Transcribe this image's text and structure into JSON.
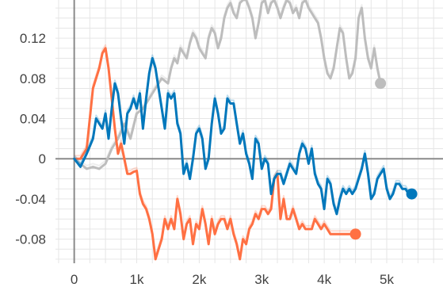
{
  "chart_data": {
    "type": "line",
    "title": "",
    "xlabel": "",
    "ylabel": "",
    "xlim": [
      -300,
      5900
    ],
    "ylim": [
      -0.104,
      0.158
    ],
    "x_ticks": [
      0,
      1000,
      2000,
      3000,
      4000,
      5000
    ],
    "x_tick_labels": [
      "0",
      "1k",
      "2k",
      "3k",
      "4k",
      "5k"
    ],
    "y_ticks": [
      0.12,
      0.08,
      0.04,
      0,
      -0.04,
      -0.08
    ],
    "y_tick_labels": [
      "0.12",
      "0.08",
      "0.04",
      "0",
      "-0.04",
      "-0.08"
    ],
    "grid": true,
    "legend": "none",
    "series": [
      {
        "color": "#bdbdbd",
        "x": [
          0,
          100,
          200,
          300,
          400,
          500,
          600,
          700,
          800,
          900,
          1000,
          1100,
          1200,
          1300,
          1400,
          1500,
          1550,
          1600,
          1650,
          1700,
          1750,
          1800,
          1850,
          1900,
          1950,
          2000,
          2050,
          2100,
          2150,
          2200,
          2250,
          2300,
          2350,
          2400,
          2450,
          2500,
          2550,
          2600,
          2650,
          2700,
          2750,
          2800,
          2850,
          2900,
          2950,
          3000,
          3050,
          3100,
          3150,
          3200,
          3250,
          3300,
          3350,
          3400,
          3450,
          3500,
          3550,
          3600,
          3650,
          3700,
          3750,
          3800,
          3850,
          3900,
          3950,
          4000,
          4050,
          4100,
          4150,
          4200,
          4250,
          4300,
          4350,
          4400,
          4450,
          4500,
          4550,
          4600,
          4650,
          4700,
          4750,
          4800,
          4850,
          4900
        ],
        "y": [
          0,
          -0.005,
          -0.01,
          -0.008,
          -0.01,
          -0.005,
          0.01,
          0.02,
          0.035,
          0.02,
          0.045,
          0.05,
          0.06,
          0.07,
          0.08,
          0.075,
          0.09,
          0.1,
          0.095,
          0.11,
          0.105,
          0.1,
          0.115,
          0.125,
          0.12,
          0.11,
          0.105,
          0.1,
          0.12,
          0.13,
          0.125,
          0.11,
          0.12,
          0.14,
          0.15,
          0.155,
          0.145,
          0.14,
          0.155,
          0.158,
          0.158,
          0.15,
          0.14,
          0.12,
          0.135,
          0.155,
          0.158,
          0.145,
          0.155,
          0.158,
          0.15,
          0.14,
          0.15,
          0.158,
          0.155,
          0.145,
          0.15,
          0.14,
          0.155,
          0.158,
          0.15,
          0.145,
          0.14,
          0.135,
          0.12,
          0.1,
          0.085,
          0.08,
          0.09,
          0.11,
          0.13,
          0.125,
          0.1,
          0.08,
          0.085,
          0.1,
          0.14,
          0.15,
          0.12,
          0.1,
          0.09,
          0.11,
          0.09,
          0.075
        ]
      },
      {
        "color": "#ff7043",
        "x": [
          0,
          100,
          200,
          300,
          400,
          450,
          500,
          550,
          600,
          650,
          700,
          750,
          800,
          850,
          900,
          950,
          1000,
          1050,
          1100,
          1150,
          1200,
          1250,
          1300,
          1350,
          1400,
          1450,
          1500,
          1550,
          1600,
          1650,
          1700,
          1750,
          1800,
          1850,
          1900,
          1950,
          2000,
          2050,
          2100,
          2150,
          2200,
          2250,
          2300,
          2350,
          2400,
          2450,
          2500,
          2550,
          2600,
          2650,
          2700,
          2750,
          2800,
          2850,
          2900,
          2950,
          3000,
          3050,
          3100,
          3150,
          3200,
          3250,
          3300,
          3350,
          3400,
          3450,
          3500,
          3550,
          3600,
          3650,
          3700,
          3750,
          3800,
          3850,
          3900,
          3950,
          4000,
          4050,
          4100,
          4150,
          4200,
          4250,
          4300,
          4350,
          4400,
          4450,
          4500
        ],
        "y": [
          0,
          0,
          0.01,
          0.07,
          0.09,
          0.105,
          0.11,
          0.09,
          0.06,
          0.03,
          0.005,
          0.015,
          0.0,
          -0.015,
          -0.015,
          -0.013,
          -0.012,
          -0.035,
          -0.045,
          -0.05,
          -0.06,
          -0.075,
          -0.1,
          -0.09,
          -0.08,
          -0.06,
          -0.07,
          -0.06,
          -0.07,
          -0.04,
          -0.055,
          -0.08,
          -0.065,
          -0.06,
          -0.085,
          -0.065,
          -0.07,
          -0.05,
          -0.065,
          -0.085,
          -0.06,
          -0.075,
          -0.065,
          -0.06,
          -0.06,
          -0.07,
          -0.06,
          -0.075,
          -0.085,
          -0.1,
          -0.08,
          -0.085,
          -0.07,
          -0.065,
          -0.055,
          -0.06,
          -0.05,
          -0.05,
          -0.055,
          -0.05,
          -0.02,
          -0.015,
          -0.06,
          -0.04,
          -0.06,
          -0.06,
          -0.05,
          -0.06,
          -0.07,
          -0.065,
          -0.07,
          -0.07,
          -0.07,
          -0.06,
          -0.065,
          -0.07,
          -0.065,
          -0.07,
          -0.075,
          -0.075,
          -0.075,
          -0.075,
          -0.075,
          -0.075,
          -0.075,
          -0.075,
          -0.075
        ]
      },
      {
        "color": "#0077bb",
        "x": [
          0,
          100,
          200,
          300,
          350,
          400,
          450,
          500,
          550,
          600,
          650,
          700,
          750,
          800,
          850,
          900,
          950,
          1000,
          1050,
          1100,
          1150,
          1200,
          1250,
          1300,
          1350,
          1400,
          1450,
          1500,
          1550,
          1600,
          1650,
          1700,
          1750,
          1800,
          1850,
          1900,
          1950,
          2000,
          2050,
          2100,
          2150,
          2200,
          2250,
          2300,
          2350,
          2400,
          2450,
          2500,
          2550,
          2600,
          2650,
          2700,
          2750,
          2800,
          2850,
          2900,
          2950,
          3000,
          3050,
          3100,
          3150,
          3200,
          3250,
          3300,
          3350,
          3400,
          3450,
          3500,
          3550,
          3600,
          3650,
          3700,
          3750,
          3800,
          3850,
          3900,
          3950,
          4000,
          4050,
          4100,
          4150,
          4200,
          4250,
          4300,
          4350,
          4400,
          4450,
          4500,
          4550,
          4600,
          4650,
          4700,
          4750,
          4800,
          4850,
          4900,
          4950,
          5000,
          5050,
          5100,
          5150,
          5200,
          5250,
          5300,
          5350,
          5400
        ],
        "y": [
          0,
          -0.008,
          0.005,
          0.02,
          0.04,
          0.035,
          0.03,
          0.045,
          0.02,
          0.05,
          0.075,
          0.065,
          0.04,
          0.015,
          0.045,
          0.05,
          0.06,
          0.05,
          0.065,
          0.03,
          0.06,
          0.085,
          0.1,
          0.09,
          0.07,
          0.05,
          0.03,
          0.065,
          0.06,
          0.065,
          0.035,
          0.025,
          -0.015,
          -0.005,
          -0.02,
          0.0,
          0.025,
          0.03,
          0.02,
          -0.01,
          0.0,
          0.035,
          0.06,
          0.045,
          0.025,
          0.03,
          0.06,
          0.055,
          0.055,
          0.035,
          0.015,
          0.025,
          0.005,
          -0.005,
          -0.02,
          0.02,
          0.015,
          -0.01,
          0.0,
          -0.005,
          -0.035,
          -0.02,
          -0.015,
          -0.015,
          -0.025,
          -0.015,
          -0.005,
          -0.01,
          -0.015,
          0.005,
          0.015,
          0.01,
          -0.005,
          0.01,
          -0.015,
          -0.025,
          -0.03,
          -0.05,
          -0.02,
          -0.025,
          -0.045,
          -0.055,
          -0.04,
          -0.03,
          -0.035,
          -0.03,
          -0.035,
          -0.03,
          -0.02,
          -0.01,
          0.005,
          -0.015,
          -0.04,
          -0.035,
          -0.02,
          -0.015,
          -0.01,
          -0.03,
          -0.04,
          -0.035,
          -0.025,
          -0.025,
          -0.03,
          -0.03,
          -0.035,
          -0.035
        ]
      }
    ]
  }
}
